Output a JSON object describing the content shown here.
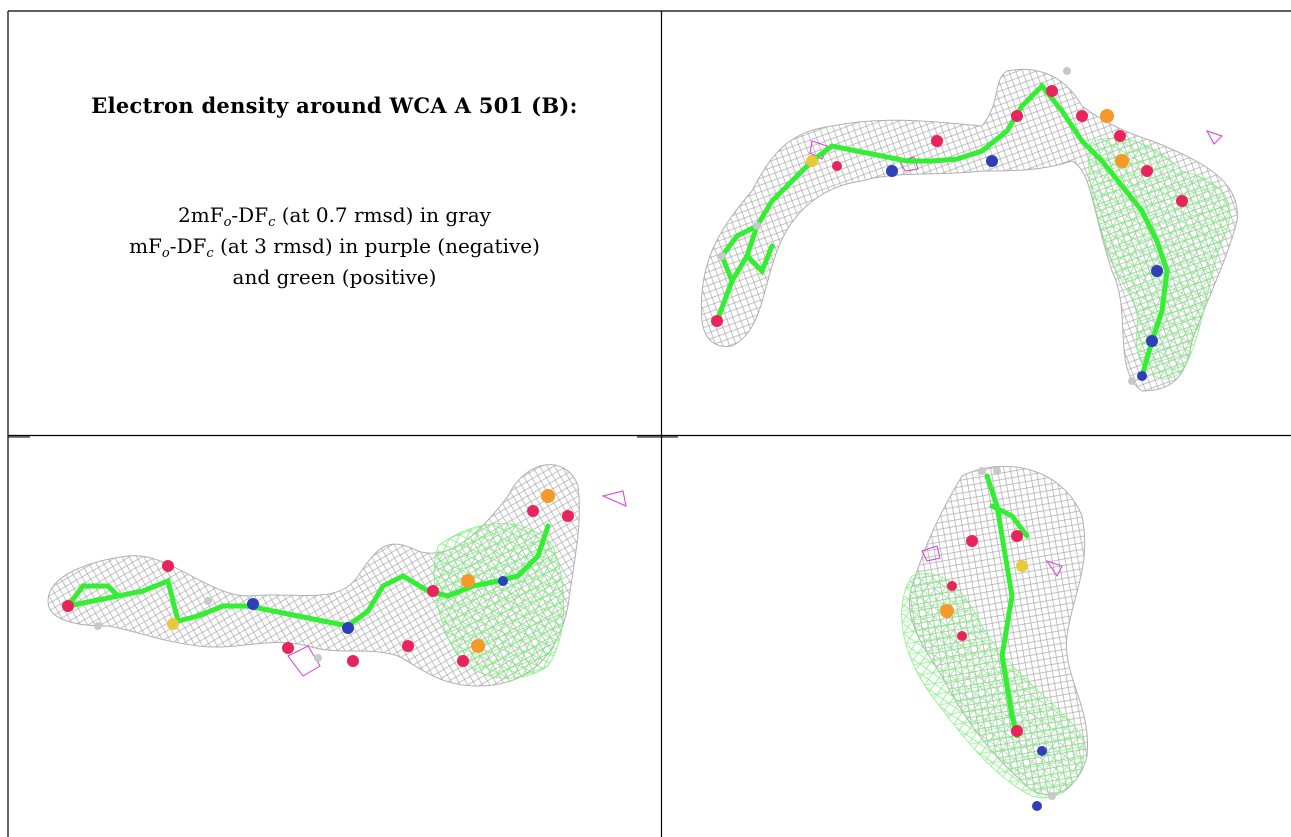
{
  "header": {
    "title": "Electron density around WCA A 501 (B):"
  },
  "legend": {
    "line1": {
      "prefix": "2mF",
      "sub1": "o",
      "mid": "-DF",
      "sub2": "c",
      "suffix": " (at 0.7 rmsd) in gray"
    },
    "line2": {
      "prefix": "mF",
      "sub1": "o",
      "mid": "-DF",
      "sub2": "c",
      "suffix": " (at 3 rmsd) in purple (negative)"
    },
    "line3": "and green (positive)"
  },
  "colors": {
    "mesh_gray": "#a8a8a8",
    "mesh_green": "#7cf07c",
    "mesh_purple": "#d43fd4",
    "carbon": "#33ee33",
    "oxygen": "#e8245c",
    "nitrogen": "#2e3fb8",
    "phosphorus": "#f59a2a",
    "sulfur": "#e8c93a",
    "hydrogen": "#c8c8c8",
    "border": "#000000"
  },
  "views": [
    {
      "name": "view-top-right"
    },
    {
      "name": "view-bottom-left"
    },
    {
      "name": "view-bottom-right"
    }
  ]
}
